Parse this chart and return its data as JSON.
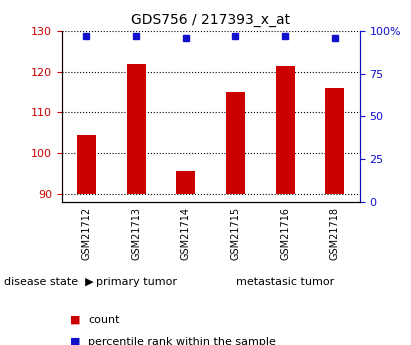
{
  "title": "GDS756 / 217393_x_at",
  "samples": [
    "GSM21712",
    "GSM21713",
    "GSM21714",
    "GSM21715",
    "GSM21716",
    "GSM21718"
  ],
  "count_values": [
    104.5,
    122.0,
    95.5,
    115.0,
    121.5,
    116.0
  ],
  "percentile_values": [
    97,
    97,
    96,
    97,
    97,
    96
  ],
  "ylim_left": [
    88,
    130
  ],
  "ylim_right": [
    0,
    100
  ],
  "yticks_left": [
    90,
    100,
    110,
    120,
    130
  ],
  "yticks_right": [
    0,
    25,
    50,
    75,
    100
  ],
  "bar_color": "#cc0000",
  "dot_color": "#1111cc",
  "bar_bottom": 90,
  "groups": [
    {
      "label": "primary tumor",
      "indices": [
        0,
        1,
        2
      ],
      "color": "#aaeaaa"
    },
    {
      "label": "metastasic tumor",
      "indices": [
        3,
        4,
        5
      ],
      "color": "#44cc44"
    }
  ],
  "disease_state_label": "disease state",
  "legend_count_label": "count",
  "legend_percentile_label": "percentile rank within the sample",
  "tick_label_color_left": "#cc0000",
  "tick_label_color_right": "#1111cc",
  "xlabel_box_color": "#cccccc",
  "bg_color": "#ffffff"
}
